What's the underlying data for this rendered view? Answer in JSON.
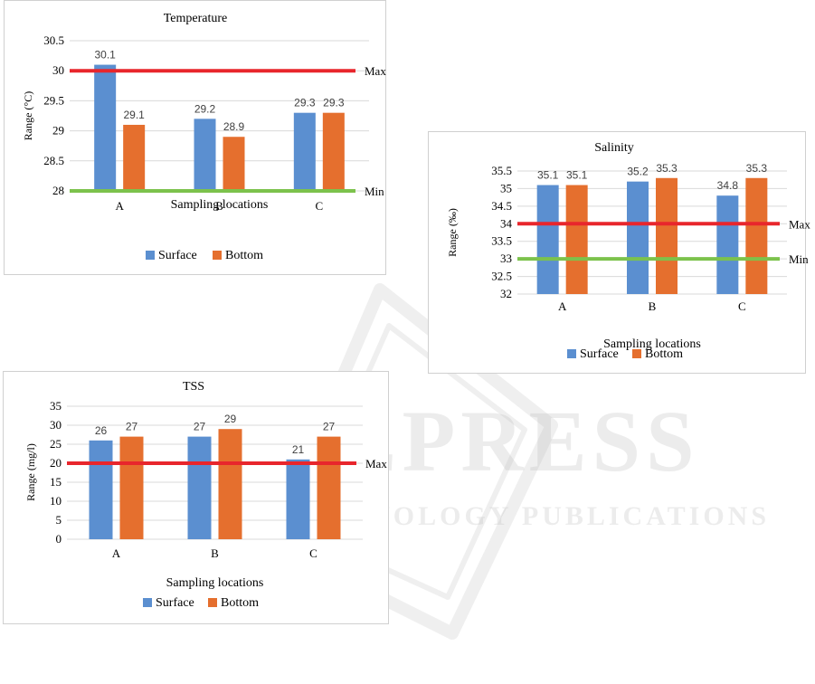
{
  "colors": {
    "surface": "#5b8fd0",
    "bottom": "#e56f2e",
    "max_line": "#e8262c",
    "min_line": "#7cc24c",
    "grid": "#d9d9d9"
  },
  "watermark": {
    "brand": "SCITEPRESS",
    "tagline": "SCIENCE AND TECHNOLOGY PUBLICATIONS"
  },
  "chart_data": [
    {
      "type": "bar",
      "title": "Temperature",
      "xlabel": "Sampling locations",
      "ylabel": "Range (°C)",
      "categories": [
        "A",
        "B",
        "C"
      ],
      "series": [
        {
          "name": "Surface",
          "values": [
            30.1,
            29.2,
            29.3
          ]
        },
        {
          "name": "Bottom",
          "values": [
            29.1,
            28.9,
            29.3
          ]
        }
      ],
      "data_labels": [
        [
          "30.1",
          "29.2",
          "29.3"
        ],
        [
          "29.1",
          "28.9",
          "29.3"
        ]
      ],
      "ylim": [
        28,
        30.5
      ],
      "yticks": [
        "28",
        "28.5",
        "29",
        "29.5",
        "30",
        "30.5"
      ],
      "reference_lines": [
        {
          "label": "Max",
          "value": 30
        },
        {
          "label": "Min",
          "value": 28
        }
      ],
      "grid": true,
      "legend_position": "bottom"
    },
    {
      "type": "bar",
      "title": "Salinity",
      "xlabel": "Sampling locations",
      "ylabel": "Range (‰)",
      "categories": [
        "A",
        "B",
        "C"
      ],
      "series": [
        {
          "name": "Surface",
          "values": [
            35.1,
            35.2,
            34.8
          ]
        },
        {
          "name": "Bottom",
          "values": [
            35.1,
            35.3,
            35.3
          ]
        }
      ],
      "data_labels": [
        [
          "35.1",
          "35.2",
          "34.8"
        ],
        [
          "35.1",
          "35.3",
          "35.3"
        ]
      ],
      "ylim": [
        32,
        35.5
      ],
      "yticks": [
        "32",
        "32.5",
        "33",
        "33.5",
        "34",
        "34.5",
        "35",
        "35.5"
      ],
      "reference_lines": [
        {
          "label": "Max",
          "value": 34
        },
        {
          "label": "Min",
          "value": 33
        }
      ],
      "grid": true,
      "legend_position": "bottom"
    },
    {
      "type": "bar",
      "title": "TSS",
      "xlabel": "Sampling locations",
      "ylabel": "Range (mg/l)",
      "categories": [
        "A",
        "B",
        "C"
      ],
      "series": [
        {
          "name": "Surface",
          "values": [
            26,
            27,
            21
          ]
        },
        {
          "name": "Bottom",
          "values": [
            27,
            29,
            27
          ]
        }
      ],
      "data_labels": [
        [
          "26",
          "27",
          "21"
        ],
        [
          "27",
          "29",
          "27"
        ]
      ],
      "ylim": [
        0,
        35
      ],
      "yticks": [
        "0",
        "5",
        "10",
        "15",
        "20",
        "25",
        "30",
        "35"
      ],
      "reference_lines": [
        {
          "label": "Max",
          "value": 20
        }
      ],
      "grid": true,
      "legend_position": "bottom"
    }
  ]
}
